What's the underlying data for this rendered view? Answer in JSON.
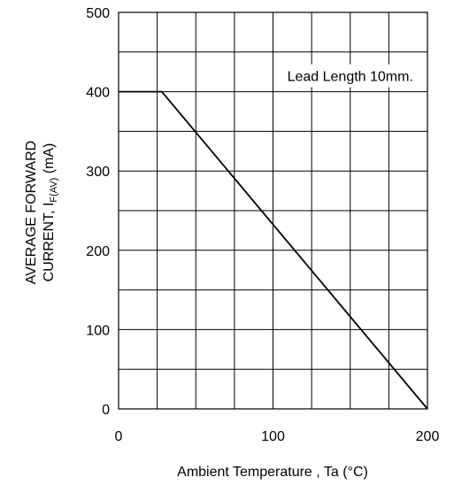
{
  "chart_data": {
    "type": "line",
    "xlabel": "Ambient Temperature , Ta (°C)",
    "ylabel": {
      "line1": "AVERAGE FORWARD",
      "line2_prefix": "CURRENT,  I",
      "line2_sub": "F(AV)",
      "line2_suffix": "  (mA)"
    },
    "xlim": [
      0,
      200
    ],
    "ylim": [
      0,
      500
    ],
    "x_ticks": [
      "0",
      "100",
      "200"
    ],
    "y_ticks": [
      "0",
      "100",
      "200",
      "300",
      "400",
      "500"
    ],
    "grid": true,
    "x_grid_lines": [
      25,
      50,
      75,
      100,
      125,
      150,
      175
    ],
    "y_grid_lines": [
      50,
      100,
      150,
      200,
      250,
      300,
      350,
      400,
      450
    ],
    "series": [
      {
        "x": [
          0,
          28,
          200
        ],
        "y": [
          400,
          400,
          0
        ]
      }
    ],
    "annotation": {
      "text": "Lead Length 10mm.",
      "x": 150,
      "y": 420
    }
  }
}
